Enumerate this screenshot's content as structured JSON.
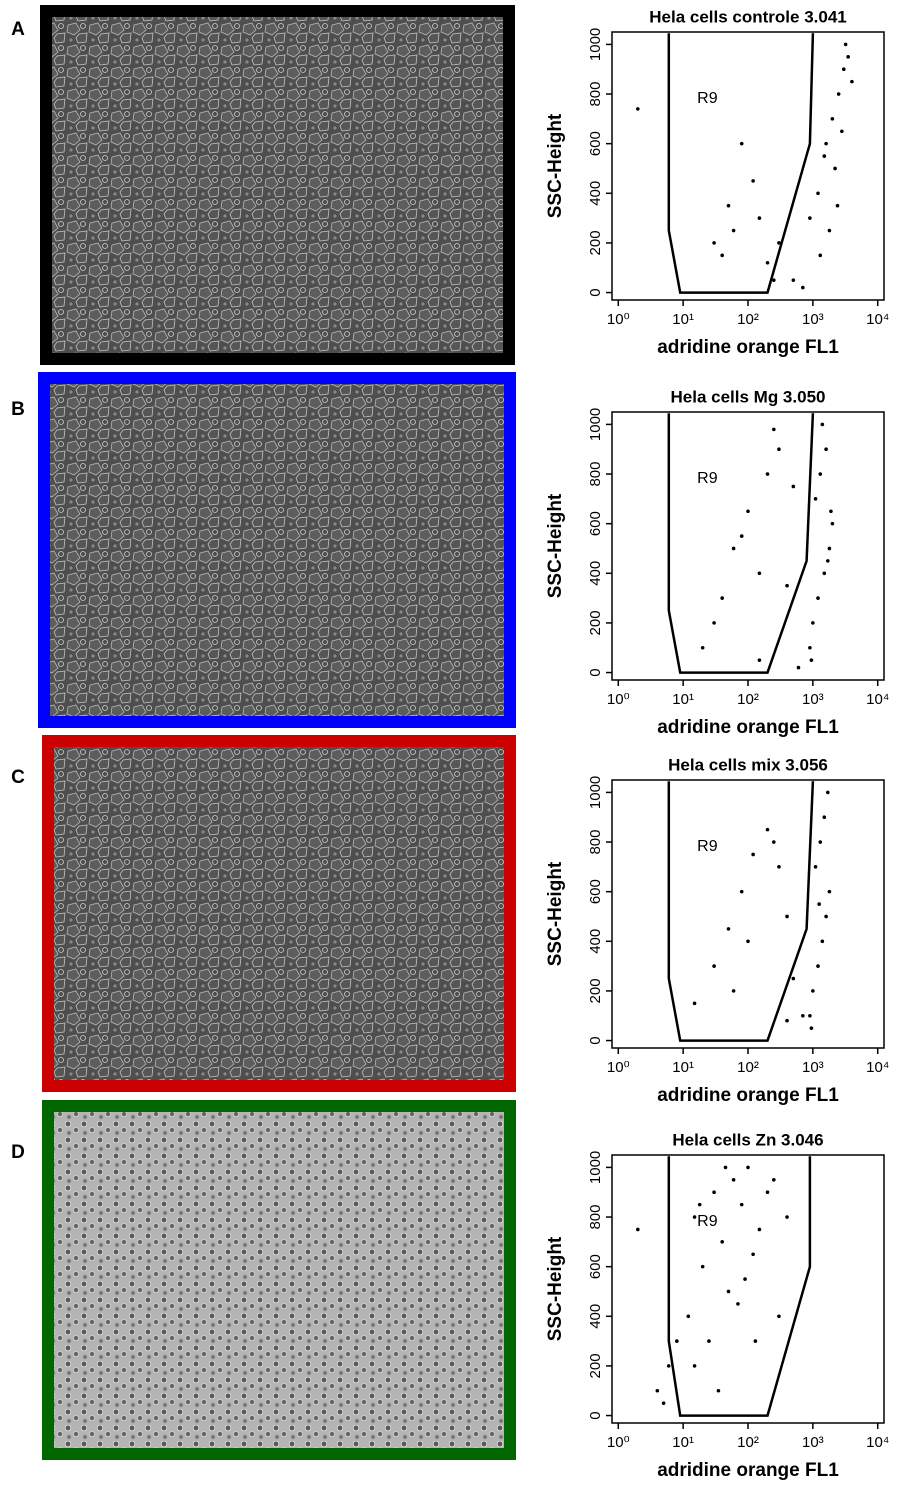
{
  "chart_data": [
    {
      "type": "scatter",
      "panel_label": "A",
      "frame_color": "#000000",
      "title": "Hela cells controle 3.041",
      "x_label": "adridine orange FL1",
      "y_label": "SSC-Height",
      "log_x": true,
      "color": "#000000",
      "xlim": [
        0.8,
        12500
      ],
      "ylim": [
        -30,
        1050
      ],
      "xticks": [
        {
          "value": 1,
          "label": "10⁰"
        },
        {
          "value": 10,
          "label": "10¹"
        },
        {
          "value": 100,
          "label": "10²"
        },
        {
          "value": 1000,
          "label": "10³"
        },
        {
          "value": 10000,
          "label": "10⁴"
        }
      ],
      "yticks": [
        0,
        200,
        400,
        600,
        800,
        1000
      ],
      "gate": {
        "label": "R9",
        "x": [
          6,
          6,
          9,
          200,
          900,
          1000
        ],
        "y": [
          1045,
          250,
          0,
          0,
          600,
          1045
        ]
      },
      "x": [
        2,
        30,
        50,
        80,
        120,
        150,
        60,
        40,
        200,
        300,
        500,
        900,
        1200,
        1500,
        2000,
        2500,
        3000,
        3500,
        4000,
        1800,
        2200,
        2800,
        1300,
        3200,
        1600,
        2400,
        250,
        700
      ],
      "values": [
        740,
        200,
        350,
        600,
        450,
        300,
        250,
        150,
        120,
        200,
        50,
        300,
        400,
        550,
        700,
        800,
        900,
        950,
        850,
        250,
        500,
        650,
        150,
        1000,
        600,
        350,
        50,
        20
      ]
    },
    {
      "type": "scatter",
      "panel_label": "B",
      "frame_color": "#0000ff",
      "title": "Hela cells Mg 3.050",
      "x_label": "adridine orange FL1",
      "y_label": "SSC-Height",
      "log_x": true,
      "color": "#000000",
      "xlim": [
        0.8,
        12500
      ],
      "ylim": [
        -30,
        1050
      ],
      "xticks": [
        {
          "value": 1,
          "label": "10⁰"
        },
        {
          "value": 10,
          "label": "10¹"
        },
        {
          "value": 100,
          "label": "10²"
        },
        {
          "value": 1000,
          "label": "10³"
        },
        {
          "value": 10000,
          "label": "10⁴"
        }
      ],
      "yticks": [
        0,
        200,
        400,
        600,
        800,
        1000
      ],
      "gate": {
        "label": "R9",
        "x": [
          6,
          6,
          9,
          200,
          800,
          1000
        ],
        "y": [
          1045,
          250,
          0,
          0,
          450,
          1045
        ]
      },
      "x": [
        20,
        40,
        60,
        100,
        150,
        200,
        300,
        500,
        30,
        80,
        250,
        400,
        900,
        1000,
        1200,
        1500,
        1800,
        2000,
        1100,
        1300,
        1600,
        1400,
        1700,
        950,
        1900,
        150,
        600
      ],
      "values": [
        100,
        300,
        500,
        650,
        400,
        800,
        900,
        750,
        200,
        550,
        980,
        350,
        100,
        200,
        300,
        400,
        500,
        600,
        700,
        800,
        900,
        1000,
        450,
        50,
        650,
        50,
        20
      ]
    },
    {
      "type": "scatter",
      "panel_label": "C",
      "frame_color": "#cc0000",
      "title": "Hela cells mix 3.056",
      "x_label": "adridine orange FL1",
      "y_label": "SSC-Height",
      "log_x": true,
      "color": "#000000",
      "xlim": [
        0.8,
        12500
      ],
      "ylim": [
        -30,
        1050
      ],
      "xticks": [
        {
          "value": 1,
          "label": "10⁰"
        },
        {
          "value": 10,
          "label": "10¹"
        },
        {
          "value": 100,
          "label": "10²"
        },
        {
          "value": 1000,
          "label": "10³"
        },
        {
          "value": 10000,
          "label": "10⁴"
        }
      ],
      "yticks": [
        0,
        200,
        400,
        600,
        800,
        1000
      ],
      "gate": {
        "label": "R9",
        "x": [
          6,
          6,
          9,
          200,
          800,
          1000
        ],
        "y": [
          1045,
          250,
          0,
          0,
          450,
          1045
        ]
      },
      "x": [
        15,
        30,
        50,
        80,
        120,
        200,
        300,
        400,
        60,
        100,
        250,
        500,
        900,
        1000,
        1200,
        1400,
        1600,
        1800,
        1100,
        1300,
        1500,
        1700,
        950,
        1250,
        700,
        400
      ],
      "values": [
        150,
        300,
        450,
        600,
        750,
        850,
        700,
        500,
        200,
        400,
        800,
        250,
        100,
        200,
        300,
        400,
        500,
        600,
        700,
        800,
        900,
        1000,
        50,
        550,
        100,
        80
      ]
    },
    {
      "type": "scatter",
      "panel_label": "D",
      "frame_color": "#006600",
      "title": "Hela cells Zn 3.046",
      "x_label": "adridine orange FL1",
      "y_label": "SSC-Height",
      "log_x": true,
      "color": "#000000",
      "xlim": [
        0.8,
        12500
      ],
      "ylim": [
        -30,
        1050
      ],
      "xticks": [
        {
          "value": 1,
          "label": "10⁰"
        },
        {
          "value": 10,
          "label": "10¹"
        },
        {
          "value": 100,
          "label": "10²"
        },
        {
          "value": 1000,
          "label": "10³"
        },
        {
          "value": 10000,
          "label": "10⁴"
        }
      ],
      "yticks": [
        0,
        200,
        400,
        600,
        800,
        1000
      ],
      "gate": {
        "label": "R9",
        "x": [
          6,
          6,
          9,
          200,
          900,
          900
        ],
        "y": [
          1045,
          300,
          0,
          0,
          600,
          1045
        ]
      },
      "x": [
        2,
        4,
        5,
        6,
        8,
        12,
        15,
        20,
        30,
        40,
        50,
        60,
        80,
        100,
        120,
        150,
        200,
        250,
        300,
        400,
        15,
        25,
        35,
        70,
        90,
        18,
        45,
        130
      ],
      "values": [
        750,
        100,
        50,
        200,
        300,
        400,
        800,
        600,
        900,
        700,
        500,
        950,
        850,
        1000,
        650,
        750,
        900,
        950,
        400,
        800,
        200,
        300,
        100,
        450,
        550,
        850,
        1000,
        300
      ]
    }
  ]
}
